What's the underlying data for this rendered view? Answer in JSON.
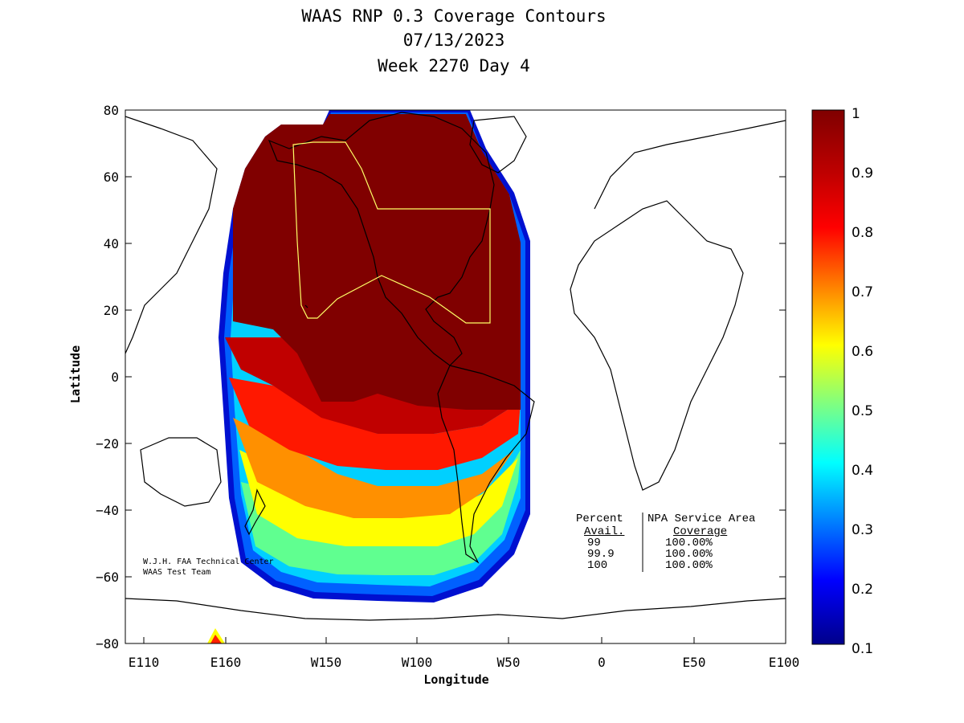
{
  "title": {
    "line1": "WAAS RNP 0.3 Coverage Contours",
    "line2": "07/13/2023",
    "line3": "Week 2270 Day 4"
  },
  "axes": {
    "xlabel": "Longitude",
    "ylabel": "Latitude",
    "x_ticks": [
      "E110",
      "E160",
      "W150",
      "W100",
      "W50",
      "0",
      "E50",
      "E100"
    ],
    "y_ticks": [
      "80",
      "60",
      "40",
      "20",
      "0",
      "−20",
      "−40",
      "−60",
      "−80"
    ]
  },
  "colorbar": {
    "ticks": [
      "1",
      "0.9",
      "0.8",
      "0.7",
      "0.6",
      "0.5",
      "0.4",
      "0.3",
      "0.2",
      "0.1"
    ],
    "colors": [
      "#7f0000",
      "#ff0000",
      "#ff7f00",
      "#ffff00",
      "#7fff7f",
      "#00ffff",
      "#007fff",
      "#0000ff",
      "#00008f"
    ]
  },
  "credit": {
    "line1": "W.J.H. FAA Technical Center",
    "line2": "WAAS Test Team"
  },
  "stats": {
    "header1_col1": "Percent",
    "header1_col2": "NPA Service Area",
    "header2_col1": "Avail.",
    "header2_col2": "Coverage",
    "rows": [
      {
        "avail": "99",
        "coverage": "100.00%"
      },
      {
        "avail": "99.9",
        "coverage": "100.00%"
      },
      {
        "avail": "100",
        "coverage": "100.00%"
      }
    ]
  },
  "chart_data": {
    "type": "heatmap",
    "xlabel": "Longitude",
    "ylabel": "Latitude",
    "xlim": [
      "E100",
      "E100"
    ],
    "ylim": [
      -80,
      80
    ],
    "color_range": [
      0.1,
      1
    ],
    "coverage_region": "North America / Pacific WAAS coverage contours"
  }
}
